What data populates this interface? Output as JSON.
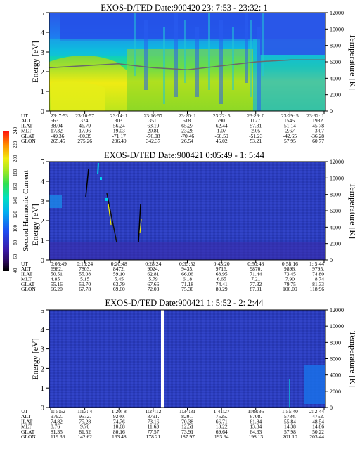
{
  "colorbar": {
    "label": "Second Harmonic Current",
    "ticks": [
      "40",
      "60",
      "80",
      "100",
      "120",
      "140",
      "160",
      "180",
      "200",
      "220",
      "240"
    ]
  },
  "chart_data": [
    {
      "type": "heatmap",
      "title": "EXOS-D/TED   Date:900420  23: 7:53 - 23:32: 1",
      "ylabel": "Energy [eV]",
      "y2label": "Temperature [K]",
      "ylim": [
        0,
        5
      ],
      "y2lim": [
        0,
        12000
      ],
      "yticks": [
        "0",
        "1",
        "2",
        "3",
        "4",
        "5"
      ],
      "y2ticks": [
        "0",
        "2000",
        "4000",
        "6000",
        "8000",
        "10000",
        "12000"
      ],
      "row_labels": [
        "UT",
        "ALT",
        "ILAT",
        "MLT",
        "GLAT",
        "GLON"
      ],
      "columns": [
        [
          "23: 7:53",
          "563.",
          "38.04",
          "17.32",
          "-49.36",
          "265.45"
        ],
        [
          "23:10:57",
          "374.",
          "46.79",
          "17.96",
          "-60.39",
          "275.26"
        ],
        [
          "23:14: 1",
          "303.",
          "56.24",
          "19.03",
          "-71.17",
          "296.49"
        ],
        [
          "23:16:57",
          "351.",
          "63.19",
          "20.81",
          "-76.08",
          "342.37"
        ],
        [
          "23:20: 1",
          "518.",
          "65.27",
          "23.26",
          "-70.46",
          "26.54"
        ],
        [
          "23:22: 5",
          "790.",
          "62.44",
          "1.07",
          "-60.59",
          "45.02"
        ],
        [
          "23:26: 0",
          "1127.",
          "57.31",
          "2.05",
          "-51.23",
          "53.21"
        ],
        [
          "23:29: 5",
          "1545.",
          "51.14",
          "2.67",
          "-42.65",
          "57.95"
        ],
        [
          "23:32: 1",
          "1982.",
          "45.78",
          "3.07",
          "-36.28",
          "60.77"
        ]
      ],
      "overlay_line": {
        "description_free": true,
        "y_energy": [
          2.2,
          2.3,
          2.4,
          2.2,
          2.1,
          2.3,
          2.5,
          2.6,
          2.6
        ]
      }
    },
    {
      "type": "heatmap",
      "title": "EXOS-D/TED   Date:900421  0:05:49 - 1: 5:44",
      "ylabel": "Energy [eV]",
      "y2label": "Temperature [K]",
      "ylim": [
        0,
        5
      ],
      "y2lim": [
        0,
        12000
      ],
      "yticks": [
        "0",
        "1",
        "2",
        "3",
        "4",
        "5"
      ],
      "y2ticks": [
        "0",
        "2000",
        "4000",
        "6000",
        "8000",
        "10000",
        "12000"
      ],
      "row_labels": [
        "UT",
        "ALT",
        "ILAT",
        "MLT",
        "GLAT",
        "GLON"
      ],
      "columns": [
        [
          "0:05:49",
          "6982.",
          "50.51",
          "4.85",
          "55.16",
          "66.20"
        ],
        [
          "0:13:24",
          "7803.",
          "55.08",
          "5.15",
          "59.70",
          "67.78"
        ],
        [
          "0:20:48",
          "8472.",
          "59.10",
          "5.45",
          "63.79",
          "69.60"
        ],
        [
          "0:28:24",
          "9024.",
          "62.81",
          "5.79",
          "67.66",
          "72.03"
        ],
        [
          "0:35:52",
          "9435.",
          "66.06",
          "6.18",
          "71.18",
          "75.36"
        ],
        [
          "0:43:20",
          "9716.",
          "68.95",
          "6.65",
          "74.41",
          "80.29"
        ],
        [
          "0:50:48",
          "9870.",
          "71.44",
          "7.21",
          "77.32",
          "87.91"
        ],
        [
          "0:58:16",
          "9896.",
          "73.45",
          "7.90",
          "79.75",
          "100.09"
        ],
        [
          "1: 5:44",
          "9795.",
          "74.80",
          "8.74",
          "81.33",
          "118.96"
        ]
      ]
    },
    {
      "type": "heatmap",
      "title": "EXOS-D/TED   Date:900421  1: 5:52 - 2: 2:44",
      "ylabel": "Energy [eV]",
      "y2label": "Temperature [K]",
      "ylim": [
        0,
        5
      ],
      "y2lim": [
        0,
        12000
      ],
      "yticks": [
        "0",
        "1",
        "2",
        "3",
        "4",
        "5"
      ],
      "y2ticks": [
        "0",
        "2000",
        "4000",
        "6000",
        "8000",
        "10000",
        "12000"
      ],
      "row_labels": [
        "UT",
        "ALT",
        "ILAT",
        "MLT",
        "GLAT",
        "GLON"
      ],
      "columns": [
        [
          "1: 5:52",
          "9792.",
          "74.82",
          "8.76",
          "81.35",
          "119.36"
        ],
        [
          "1:13: 4",
          "9572.",
          "75.28",
          "9.70",
          "81.52",
          "142.62"
        ],
        [
          "1:20: 8",
          "9240.",
          "74.76",
          "10.68",
          "80.16",
          "163.48"
        ],
        [
          "1:27:12",
          "8791.",
          "73.16",
          "11.63",
          "77.57",
          "178.21"
        ],
        [
          "1:34:31",
          "8201.",
          "70.38",
          "12.51",
          "73.91",
          "187.97"
        ],
        [
          "1:41:27",
          "7525.",
          "66.71",
          "13.22",
          "69.64",
          "193.94"
        ],
        [
          "1:48:36",
          "6708.",
          "61.84",
          "13.84",
          "64.33",
          "198.13"
        ],
        [
          "1:55:40",
          "5784.",
          "55.84",
          "14.38",
          "57.98",
          "201.10"
        ],
        [
          "2: 2:44",
          "4752.",
          "48.54",
          "14.86",
          "50.22",
          "203.44"
        ]
      ]
    }
  ]
}
